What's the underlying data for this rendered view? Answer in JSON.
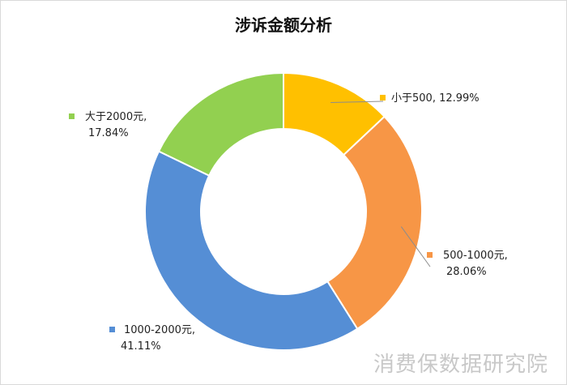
{
  "chart_data": {
    "type": "pie",
    "title": "涉诉金额分析",
    "categories": [
      "小于500",
      "500-1000元",
      "1000-2000元",
      "大于2000元"
    ],
    "values": [
      12.99,
      28.06,
      41.11,
      17.84
    ],
    "unit": "%",
    "colors": [
      "#FFC000",
      "#F79646",
      "#558ED5",
      "#92D050"
    ],
    "data_labels": [
      {
        "line1": "小于500, 12.99%",
        "line2": ""
      },
      {
        "line1": "500-1000元,",
        "line2": "28.06%"
      },
      {
        "line1": "1000-2000元,",
        "line2": "41.11%"
      },
      {
        "line1": "大于2000元,",
        "line2": "17.84%"
      }
    ],
    "legend": "none"
  },
  "watermark": "消费保数据研究院"
}
